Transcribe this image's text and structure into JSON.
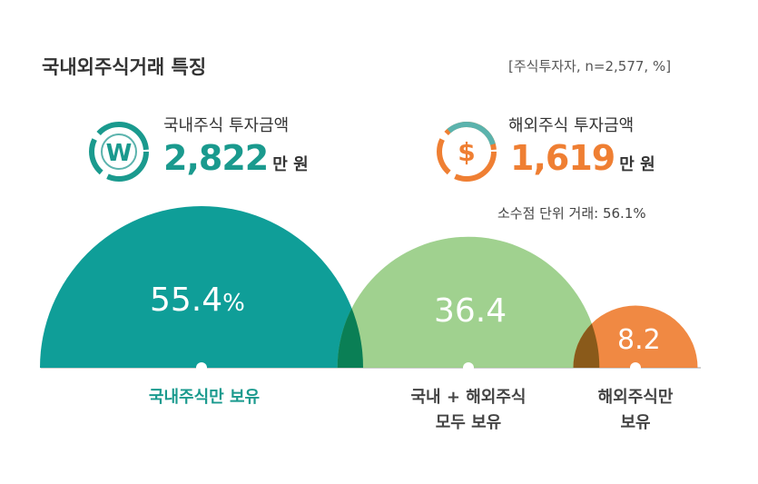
{
  "title": "국내외주식거래 특징",
  "note": "[주식투자자, n=2,577, %]",
  "domestic": {
    "label": "국내주식 투자금액",
    "value": "2,822",
    "unit": "만 원",
    "icon": "won-icon",
    "color": "#1a9a8e"
  },
  "foreign": {
    "label": "해외주식 투자금액",
    "value": "1,619",
    "unit": "만 원",
    "icon": "dollar-icon",
    "color": "#ef7f33",
    "fraction_note": "소수점 단위 거래: 56.1%"
  },
  "chart_data": {
    "type": "semicircle-bubble",
    "categories": [
      "국내주식만 보유",
      "국내 + 해외주식 모두 보유",
      "해외주식만 보유"
    ],
    "category_lines": [
      [
        "국내주식만 보유"
      ],
      [
        "국내 + 해외주식",
        "모두 보유"
      ],
      [
        "해외주식만",
        "보유"
      ]
    ],
    "values": [
      55.4,
      36.4,
      8.2
    ],
    "value_labels": [
      "55.4",
      "36.4",
      "8.2"
    ],
    "unit": "%",
    "colors": [
      "#0f9e98",
      "#98cd85",
      "#ef7f33"
    ]
  }
}
